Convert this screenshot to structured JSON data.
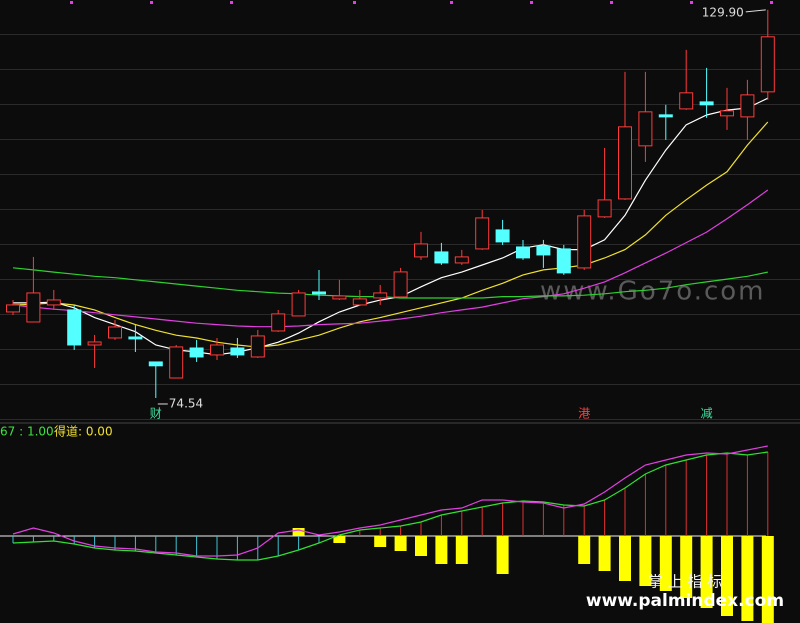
{
  "chart_data": [
    {
      "type": "candlestick",
      "up_color": "#ff3b3b",
      "down_color": "#54ffff",
      "ylim": [
        71.4,
        131.3
      ],
      "open": [
        86.81,
        85.38,
        87.81,
        87.1,
        82.1,
        83.1,
        83.24,
        79.68,
        77.39,
        81.67,
        80.68,
        81.67,
        80.39,
        84.1,
        86.24,
        89.66,
        88.67,
        87.81,
        88.81,
        88.95,
        94.66,
        95.37,
        93.8,
        95.8,
        98.51,
        96.08,
        96.23,
        95.8,
        93.09,
        100.37,
        102.93,
        110.5,
        114.92,
        115.77,
        116.77,
        114.78,
        114.63,
        118.2
      ],
      "high": [
        88.52,
        94.66,
        89.95,
        87.81,
        83.53,
        85.67,
        84.96,
        79.68,
        82.1,
        82.82,
        83.1,
        83.1,
        84.24,
        87.1,
        89.95,
        92.8,
        91.38,
        89.95,
        90.66,
        93.09,
        98.23,
        96.66,
        95.66,
        101.36,
        99.94,
        97.08,
        97.08,
        96.37,
        101.36,
        110.21,
        121.05,
        121.05,
        116.35,
        124.19,
        121.62,
        118.77,
        119.91,
        129.9
      ],
      "low": [
        86.38,
        85.38,
        87.1,
        81.39,
        78.82,
        82.82,
        81.1,
        74.54,
        77.39,
        79.68,
        79.96,
        80.25,
        80.25,
        83.96,
        86.24,
        88.52,
        88.52,
        87.67,
        87.81,
        88.81,
        94.23,
        93.52,
        93.52,
        95.66,
        96.37,
        94.23,
        93.09,
        92.09,
        92.8,
        100.22,
        102.79,
        108.21,
        111.35,
        115.63,
        114.49,
        112.78,
        111.35,
        117.06
      ],
      "close": [
        87.81,
        89.52,
        88.52,
        82.1,
        82.53,
        84.67,
        82.96,
        79.13,
        81.82,
        80.39,
        82.1,
        80.68,
        83.39,
        86.53,
        89.52,
        89.38,
        89.09,
        88.67,
        89.52,
        92.52,
        96.51,
        93.8,
        94.66,
        100.22,
        96.8,
        94.52,
        94.94,
        92.38,
        100.51,
        102.79,
        113.21,
        115.35,
        114.63,
        118.06,
        116.35,
        115.49,
        117.77,
        126.05
      ],
      "series": [
        {
          "color": "#ffffff",
          "values": [
            88.1,
            88.1,
            88.2,
            87.4,
            86.0,
            85.0,
            84.0,
            82.1,
            81.4,
            81.1,
            80.7,
            81.1,
            81.7,
            82.5,
            83.8,
            85.4,
            86.8,
            87.8,
            88.5,
            89.0,
            90.4,
            91.7,
            92.5,
            93.5,
            94.5,
            95.9,
            96.4,
            95.7,
            95.7,
            97.1,
            100.6,
            105.6,
            109.9,
            113.5,
            114.9,
            115.6,
            115.9,
            117.3
          ]
        },
        {
          "color": "#f0e030",
          "values": [
            87.8,
            87.9,
            88.1,
            87.8,
            87.1,
            86.0,
            85.0,
            84.2,
            83.5,
            83.1,
            82.5,
            82.1,
            81.8,
            82.1,
            82.8,
            83.5,
            84.5,
            85.4,
            86.0,
            86.7,
            87.4,
            88.1,
            88.8,
            89.9,
            90.9,
            92.1,
            92.8,
            93.1,
            93.5,
            94.5,
            95.7,
            97.8,
            100.6,
            102.8,
            104.9,
            106.8,
            110.6,
            113.9
          ]
        },
        {
          "color": "#e040e0",
          "values": [
            87.8,
            87.5,
            87.2,
            87.0,
            86.7,
            86.4,
            86.1,
            85.8,
            85.5,
            85.2,
            85.0,
            84.8,
            84.7,
            84.7,
            84.8,
            85.0,
            85.1,
            85.2,
            85.5,
            85.8,
            86.2,
            86.7,
            87.1,
            87.5,
            88.1,
            88.7,
            89.0,
            89.4,
            90.2,
            91.1,
            92.4,
            93.8,
            95.2,
            96.7,
            98.2,
            100.1,
            102.1,
            104.2
          ]
        },
        {
          "color": "#30d030",
          "values": [
            93.1,
            92.8,
            92.5,
            92.2,
            91.9,
            91.7,
            91.4,
            91.1,
            90.8,
            90.5,
            90.2,
            89.9,
            89.7,
            89.5,
            89.4,
            89.2,
            89.1,
            89.0,
            89.0,
            88.8,
            88.8,
            88.8,
            88.8,
            88.8,
            89.0,
            89.0,
            89.1,
            89.1,
            89.2,
            89.4,
            89.7,
            89.9,
            90.2,
            90.7,
            91.1,
            91.5,
            91.9,
            92.5
          ]
        }
      ],
      "annotations": [
        "129.90",
        "74.54"
      ],
      "event_labels": [
        null,
        null,
        null,
        null,
        null,
        null,
        null,
        "财",
        null,
        null,
        null,
        null,
        null,
        null,
        null,
        null,
        null,
        null,
        null,
        null,
        null,
        null,
        null,
        null,
        null,
        null,
        null,
        null,
        "港",
        null,
        null,
        null,
        null,
        null,
        "减",
        null,
        null,
        null
      ],
      "watermark": "www.Go7o.com"
    },
    {
      "type": "indicator",
      "ylim": [
        -87,
        96
      ],
      "legend": [
        "67 : 1.00",
        "得道: 0.00"
      ],
      "series": [
        {
          "color": "#30e030",
          "values": [
            -7,
            -6,
            -5,
            -8,
            -12,
            -14,
            -15,
            -17,
            -19,
            -21,
            -23,
            -24,
            -24,
            -20,
            -14,
            -7,
            1,
            6,
            8,
            10,
            14,
            21,
            25,
            29,
            33,
            35,
            34,
            31,
            30,
            36,
            48,
            62,
            71,
            76,
            81,
            83,
            81,
            84
          ]
        },
        {
          "color": "#e040e0",
          "values": [
            2,
            8,
            3,
            -5,
            -10,
            -12,
            -13,
            -16,
            -17,
            -20,
            -20,
            -19,
            -12,
            3,
            6,
            1,
            4,
            8,
            11,
            16,
            21,
            26,
            28,
            36,
            36,
            34,
            33,
            28,
            32,
            44,
            58,
            71,
            76,
            81,
            83,
            82,
            86,
            90
          ]
        }
      ],
      "bars": {
        "color": "#ffff00",
        "values": [
          null,
          null,
          null,
          null,
          null,
          null,
          null,
          null,
          null,
          null,
          null,
          null,
          null,
          null,
          8,
          null,
          -7,
          null,
          -11,
          -15,
          -20,
          -28,
          -28,
          null,
          -38,
          null,
          null,
          null,
          -28,
          -35,
          -45,
          -50,
          -55,
          -62,
          -72,
          -80,
          -85,
          -87
        ]
      },
      "watermark": [
        "掌 上 指 标",
        "www.palmindex.com"
      ]
    }
  ]
}
